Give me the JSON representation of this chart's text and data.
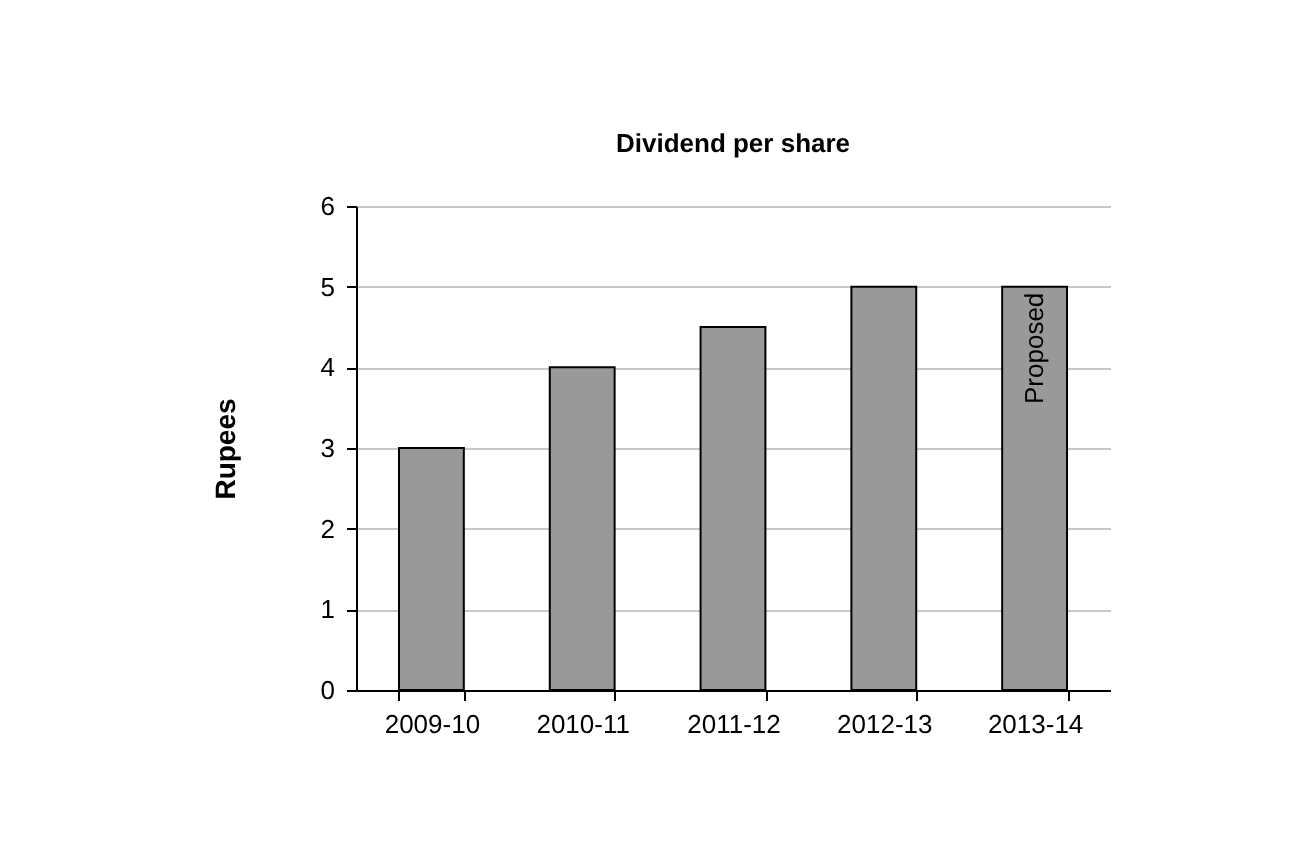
{
  "chart_data": {
    "type": "bar",
    "title": "Dividend per share",
    "ylabel": "Rupees",
    "categories": [
      "2009-10",
      "2010-11",
      "2011-12",
      "2012-13",
      "2013-14"
    ],
    "values": [
      3,
      4,
      4.5,
      5,
      5
    ],
    "color": "#999999",
    "ylim": [
      0,
      6
    ],
    "yticks": [
      0,
      1,
      2,
      3,
      4,
      5,
      6
    ],
    "grid": "y",
    "annotations": [
      "Proposed"
    ]
  }
}
